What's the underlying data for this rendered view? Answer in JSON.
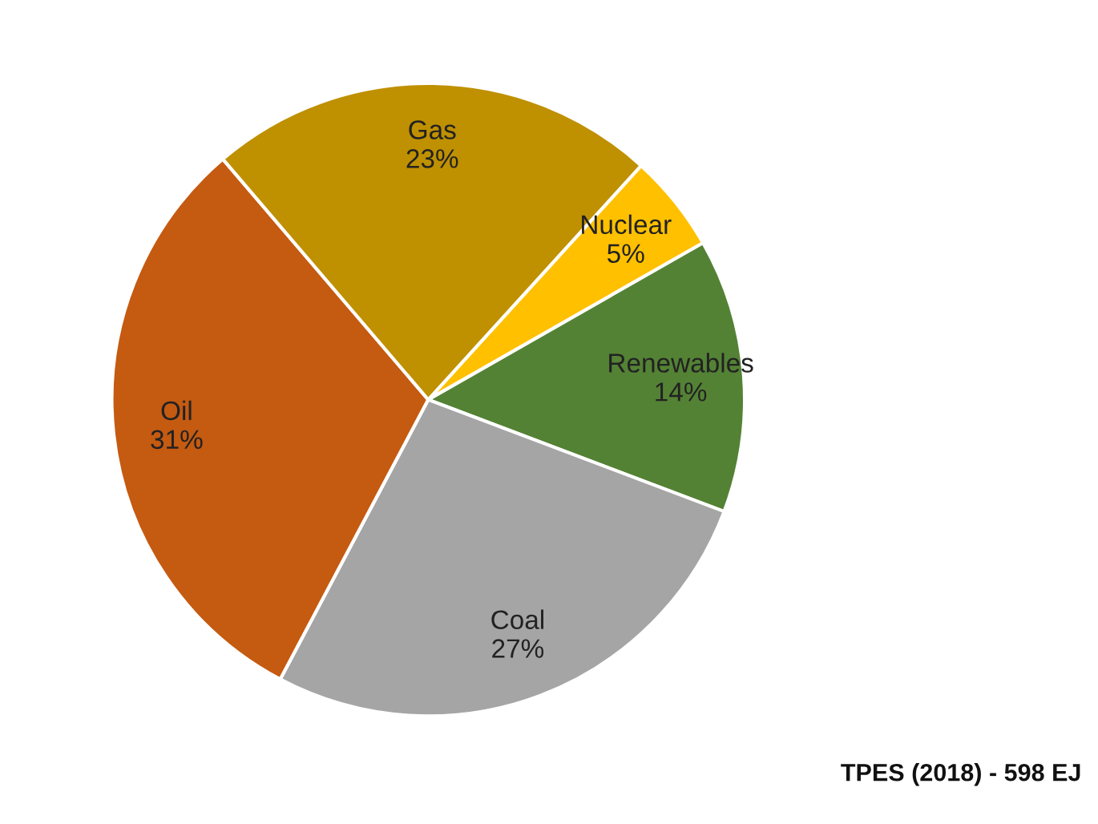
{
  "chart_data": {
    "type": "pie",
    "categories": [
      "Nuclear",
      "Renewables",
      "Coal",
      "Oil",
      "Gas"
    ],
    "values": [
      5,
      14,
      27,
      31,
      23
    ],
    "value_labels": [
      "5%",
      "14%",
      "27%",
      "31%",
      "23%"
    ],
    "colors": [
      "#ffc000",
      "#548235",
      "#a5a5a5",
      "#c55a11",
      "#bf9000"
    ],
    "legend": false,
    "annotations": [
      "TPES (2018) - 598 EJ"
    ]
  }
}
